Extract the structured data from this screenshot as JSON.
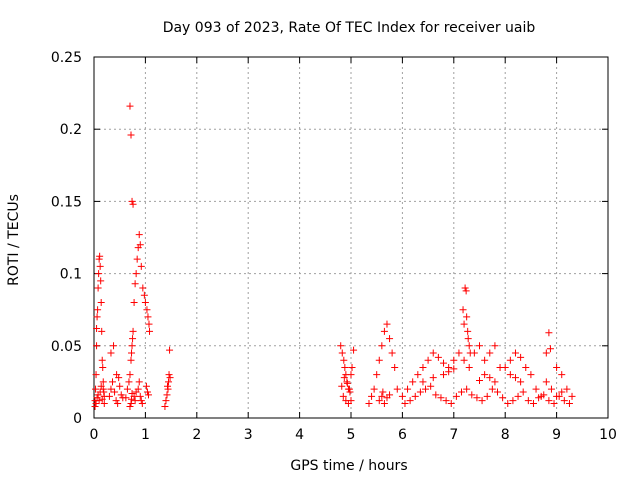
{
  "chart_data": {
    "type": "scatter",
    "title": "Day 093 of 2023, Rate Of TEC Index for receiver uaib",
    "xlabel": "GPS time / hours",
    "ylabel": "ROTI / TECUs",
    "xlim": [
      0,
      10
    ],
    "ylim": [
      0,
      0.25
    ],
    "x_ticks": [
      "0",
      "1",
      "2",
      "3",
      "4",
      "5",
      "6",
      "7",
      "8",
      "9",
      "10"
    ],
    "y_ticks": [
      "0",
      "0.05",
      "0.1",
      "0.15",
      "0.2",
      "0.25"
    ],
    "grid": true,
    "marker": "+",
    "color": "#ff0000",
    "x": [
      0.02,
      0.03,
      0.04,
      0.05,
      0.05,
      0.06,
      0.07,
      0.08,
      0.09,
      0.1,
      0.11,
      0.12,
      0.13,
      0.14,
      0.15,
      0.16,
      0.17,
      0.18,
      0.19,
      0.2,
      0.02,
      0.04,
      0.06,
      0.08,
      0.1,
      0.12,
      0.14,
      0.16,
      0.18,
      0.2,
      0.3,
      0.33,
      0.36,
      0.4,
      0.43,
      0.46,
      0.5,
      0.53,
      0.56,
      0.33,
      0.38,
      0.44,
      0.48,
      0.62,
      0.65,
      0.68,
      0.7,
      0.72,
      0.73,
      0.74,
      0.75,
      0.76,
      0.78,
      0.8,
      0.82,
      0.84,
      0.86,
      0.88,
      0.9,
      0.92,
      0.95,
      0.98,
      1.0,
      1.03,
      1.05,
      1.07,
      1.08,
      0.7,
      0.72,
      0.74,
      0.76,
      0.78,
      0.8,
      0.82,
      0.86,
      0.88,
      0.9,
      0.92,
      0.94,
      1.02,
      1.04,
      1.06,
      0.7,
      0.72,
      0.73,
      0.74,
      1.38,
      1.4,
      1.42,
      1.44,
      1.45,
      1.46,
      1.47,
      1.48,
      1.43,
      4.8,
      4.83,
      4.86,
      4.88,
      4.9,
      4.92,
      4.95,
      4.98,
      5.0,
      5.02,
      5.05,
      4.85,
      4.9,
      4.95,
      5.0,
      4.82,
      4.87,
      4.93,
      4.97,
      5.35,
      5.4,
      5.45,
      5.5,
      5.55,
      5.6,
      5.65,
      5.7,
      5.75,
      5.8,
      5.85,
      5.9,
      5.55,
      5.6,
      5.62,
      5.65,
      5.7,
      5.75,
      6.0,
      6.1,
      6.2,
      6.3,
      6.4,
      6.5,
      6.6,
      6.7,
      6.8,
      6.9,
      7.0,
      7.1,
      7.2,
      7.3,
      7.4,
      7.5,
      7.6,
      7.7,
      7.8,
      7.9,
      6.05,
      6.15,
      6.25,
      6.35,
      6.45,
      6.55,
      6.65,
      6.75,
      6.85,
      6.95,
      7.05,
      7.15,
      7.25,
      7.35,
      7.45,
      7.55,
      7.65,
      7.75,
      7.85,
      7.95,
      7.18,
      7.2,
      7.22,
      7.24,
      7.25,
      7.27,
      7.28,
      7.3,
      7.32,
      6.4,
      6.6,
      6.8,
      6.9,
      7.0,
      7.5,
      7.6,
      7.7,
      7.8,
      8.0,
      8.1,
      8.2,
      8.3,
      8.4,
      8.5,
      8.6,
      8.7,
      8.8,
      8.9,
      9.0,
      9.1,
      9.2,
      9.3,
      8.05,
      8.15,
      8.25,
      8.35,
      8.45,
      8.55,
      8.65,
      8.75,
      8.85,
      8.95,
      9.05,
      9.15,
      9.25,
      8.1,
      8.2,
      8.3,
      8.8,
      8.85,
      8.88,
      9.0,
      9.1
    ],
    "y": [
      0.012,
      0.02,
      0.03,
      0.05,
      0.062,
      0.07,
      0.075,
      0.09,
      0.1,
      0.11,
      0.112,
      0.105,
      0.095,
      0.08,
      0.06,
      0.04,
      0.035,
      0.025,
      0.018,
      0.015,
      0.008,
      0.01,
      0.014,
      0.016,
      0.012,
      0.018,
      0.022,
      0.013,
      0.02,
      0.01,
      0.015,
      0.02,
      0.025,
      0.018,
      0.012,
      0.01,
      0.022,
      0.016,
      0.014,
      0.045,
      0.05,
      0.03,
      0.028,
      0.014,
      0.02,
      0.025,
      0.03,
      0.04,
      0.045,
      0.05,
      0.055,
      0.06,
      0.08,
      0.093,
      0.1,
      0.11,
      0.118,
      0.127,
      0.12,
      0.105,
      0.09,
      0.085,
      0.08,
      0.075,
      0.07,
      0.065,
      0.06,
      0.216,
      0.196,
      0.15,
      0.148,
      0.015,
      0.012,
      0.018,
      0.02,
      0.025,
      0.015,
      0.012,
      0.01,
      0.022,
      0.018,
      0.016,
      0.008,
      0.01,
      0.013,
      0.017,
      0.008,
      0.012,
      0.016,
      0.02,
      0.025,
      0.03,
      0.047,
      0.028,
      0.022,
      0.05,
      0.045,
      0.04,
      0.035,
      0.03,
      0.025,
      0.02,
      0.018,
      0.03,
      0.035,
      0.047,
      0.015,
      0.012,
      0.01,
      0.012,
      0.022,
      0.028,
      0.024,
      0.02,
      0.01,
      0.015,
      0.02,
      0.03,
      0.04,
      0.05,
      0.06,
      0.065,
      0.055,
      0.045,
      0.035,
      0.02,
      0.012,
      0.015,
      0.018,
      0.01,
      0.014,
      0.016,
      0.015,
      0.02,
      0.025,
      0.03,
      0.035,
      0.04,
      0.045,
      0.042,
      0.038,
      0.035,
      0.04,
      0.045,
      0.04,
      0.035,
      0.045,
      0.05,
      0.04,
      0.045,
      0.05,
      0.035,
      0.01,
      0.012,
      0.015,
      0.018,
      0.02,
      0.022,
      0.016,
      0.014,
      0.012,
      0.01,
      0.015,
      0.018,
      0.02,
      0.016,
      0.014,
      0.012,
      0.015,
      0.02,
      0.018,
      0.014,
      0.075,
      0.065,
      0.09,
      0.088,
      0.07,
      0.06,
      0.055,
      0.05,
      0.045,
      0.025,
      0.028,
      0.03,
      0.032,
      0.034,
      0.026,
      0.03,
      0.028,
      0.025,
      0.035,
      0.04,
      0.045,
      0.042,
      0.035,
      0.03,
      0.02,
      0.015,
      0.025,
      0.02,
      0.015,
      0.018,
      0.02,
      0.015,
      0.01,
      0.012,
      0.015,
      0.018,
      0.012,
      0.01,
      0.014,
      0.016,
      0.012,
      0.01,
      0.015,
      0.012,
      0.01,
      0.03,
      0.028,
      0.025,
      0.045,
      0.059,
      0.048,
      0.035,
      0.03
    ]
  }
}
